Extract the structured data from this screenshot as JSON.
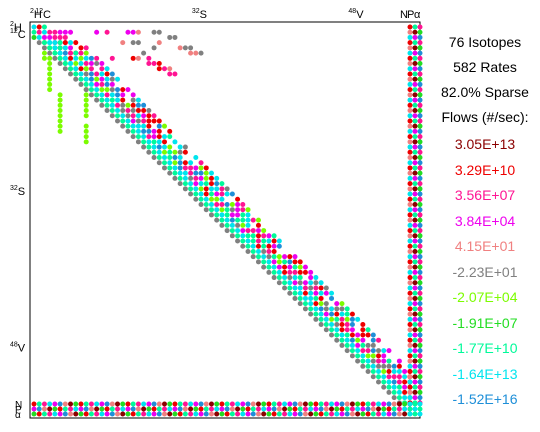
{
  "chart_data": {
    "type": "heatmap",
    "description_visible": false,
    "top_labels": [
      {
        "mass": "2",
        "symbol": "H",
        "index": 0
      },
      {
        "mass": "12",
        "symbol": "C",
        "index": 1
      },
      {
        "mass": "32",
        "symbol": "S",
        "index": 31
      },
      {
        "mass": "48",
        "symbol": "V",
        "index": 61
      }
    ],
    "top_right_labels": [
      "N",
      "P",
      "α"
    ],
    "left_labels": [
      {
        "mass": "2",
        "symbol": "H",
        "index": 0
      },
      {
        "mass": "12",
        "symbol": "C",
        "index": 1
      },
      {
        "mass": "32",
        "symbol": "S",
        "index": 31
      },
      {
        "mass": "48",
        "symbol": "V",
        "index": 61
      }
    ],
    "bottom_left_labels": [
      "N",
      "P",
      "α"
    ],
    "n_species": 76,
    "n_main": 73,
    "stats": {
      "isotopes": "76 Isotopes",
      "rates": "582 Rates",
      "sparse": "82.0% Sparse"
    },
    "flows_heading": "Flows (#/sec):",
    "flow_levels": [
      {
        "label": "3.05E+13",
        "color": "#8b0000"
      },
      {
        "label": "3.29E+10",
        "color": "#ee0000"
      },
      {
        "label": "3.56E+07",
        "color": "#ff1493"
      },
      {
        "label": "3.84E+04",
        "color": "#ee00ee"
      },
      {
        "label": "4.15E+01",
        "color": "#f08080"
      },
      {
        "label": "-2.23E+01",
        "color": "#808080"
      },
      {
        "label": "-2.07E+04",
        "color": "#7cfc00"
      },
      {
        "label": "-1.91E+07",
        "color": "#22dd22"
      },
      {
        "label": "-1.77E+10",
        "color": "#00fa9a"
      },
      {
        "label": "-1.64E+13",
        "color": "#00e5ee"
      },
      {
        "label": "-1.52E+16",
        "color": "#1e8fd8"
      }
    ],
    "cells": [
      [
        0,
        0,
        9
      ],
      [
        0,
        1,
        1
      ],
      [
        0,
        2,
        8
      ],
      [
        1,
        0,
        8
      ],
      [
        1,
        1,
        2
      ],
      [
        1,
        2,
        9
      ],
      [
        2,
        0,
        7
      ],
      [
        2,
        1,
        9
      ],
      [
        2,
        2,
        3
      ],
      [
        1,
        3,
        2
      ],
      [
        1,
        4,
        2
      ],
      [
        1,
        5,
        3
      ],
      [
        1,
        6,
        3
      ],
      [
        1,
        7,
        3
      ],
      [
        2,
        3,
        3
      ],
      [
        2,
        4,
        2
      ],
      [
        2,
        5,
        2
      ],
      [
        2,
        6,
        2
      ],
      [
        3,
        4,
        2
      ],
      [
        3,
        5,
        2
      ],
      [
        3,
        6,
        2
      ],
      [
        4,
        5,
        2
      ],
      [
        4,
        6,
        4
      ],
      [
        5,
        7,
        4
      ],
      [
        5,
        8,
        1
      ],
      [
        1,
        12,
        3
      ],
      [
        1,
        14,
        2
      ],
      [
        1,
        18,
        3
      ],
      [
        1,
        19,
        3
      ],
      [
        1,
        20,
        4
      ],
      [
        1,
        23,
        5
      ],
      [
        1,
        24,
        5
      ],
      [
        2,
        26,
        5
      ],
      [
        2,
        27,
        5
      ],
      [
        3,
        17,
        4
      ],
      [
        3,
        19,
        5
      ],
      [
        3,
        20,
        5
      ],
      [
        3,
        24,
        4
      ],
      [
        5,
        21,
        5
      ],
      [
        4,
        23,
        5
      ],
      [
        4,
        28,
        4
      ],
      [
        4,
        29,
        5
      ],
      [
        4,
        30,
        5
      ],
      [
        5,
        30,
        4
      ],
      [
        5,
        32,
        5
      ],
      [
        5,
        31,
        4
      ],
      [
        6,
        15,
        2
      ],
      [
        6,
        19,
        1
      ],
      [
        6,
        20,
        4
      ],
      [
        6,
        22,
        2
      ],
      [
        7,
        22,
        2
      ],
      [
        7,
        23,
        2
      ],
      [
        7,
        24,
        1
      ],
      [
        8,
        24,
        1
      ],
      [
        8,
        25,
        2
      ],
      [
        8,
        26,
        4
      ],
      [
        9,
        26,
        2
      ],
      [
        9,
        27,
        2
      ],
      [
        3,
        2,
        6
      ],
      [
        4,
        3,
        6
      ],
      [
        5,
        4,
        6
      ],
      [
        6,
        5,
        6
      ],
      [
        7,
        6,
        6
      ],
      [
        8,
        7,
        6
      ],
      [
        9,
        8,
        6
      ],
      [
        3,
        3,
        9
      ],
      [
        4,
        4,
        8
      ],
      [
        5,
        5,
        9
      ],
      [
        6,
        6,
        10
      ],
      [
        7,
        7,
        9
      ],
      [
        8,
        8,
        8
      ],
      [
        5,
        2,
        6
      ],
      [
        6,
        2,
        6
      ],
      [
        7,
        3,
        6
      ],
      [
        8,
        3,
        6
      ],
      [
        9,
        3,
        6
      ],
      [
        11,
        3,
        6
      ],
      [
        12,
        3,
        6
      ],
      [
        6,
        3,
        6
      ],
      [
        10,
        3,
        6
      ],
      [
        8,
        10,
        6
      ],
      [
        10,
        10,
        6
      ],
      [
        12,
        10,
        6
      ],
      [
        13,
        10,
        6
      ],
      [
        13,
        5,
        6
      ],
      [
        14,
        5,
        6
      ],
      [
        15,
        5,
        6
      ],
      [
        17,
        5,
        6
      ],
      [
        18,
        5,
        6
      ],
      [
        19,
        5,
        6
      ],
      [
        20,
        5,
        6
      ],
      [
        16,
        5,
        6
      ],
      [
        14,
        10,
        6
      ],
      [
        15,
        10,
        6
      ],
      [
        16,
        10,
        6
      ],
      [
        17,
        10,
        6
      ],
      [
        19,
        10,
        6
      ],
      [
        20,
        10,
        6
      ],
      [
        21,
        10,
        6
      ],
      [
        22,
        10,
        6
      ]
    ]
  }
}
